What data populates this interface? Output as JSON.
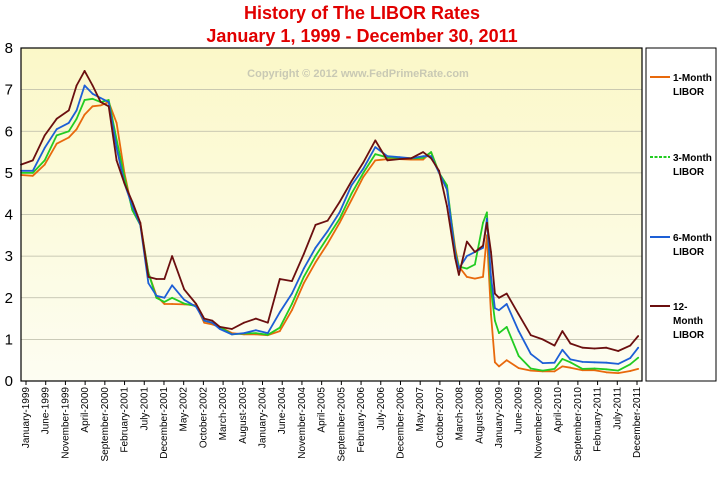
{
  "chart_data": {
    "type": "line",
    "title": "History of The LIBOR Rates",
    "subtitle": "January 1, 1999 - December 30, 2011",
    "watermark": "Copyright © 2012 www.FedPrimeRate.com",
    "xlabel": "",
    "ylabel": "",
    "ylim": [
      0,
      8
    ],
    "yticks": [
      "0",
      "1",
      "2",
      "3",
      "4",
      "5",
      "6",
      "7",
      "8"
    ],
    "xtick_labels": [
      "January-1999",
      "June-1999",
      "November-1999",
      "April-2000",
      "September-2000",
      "February-2001",
      "July-2001",
      "December-2001",
      "May-2002",
      "October-2002",
      "March-2003",
      "August-2003",
      "January-2004",
      "June-2004",
      "November-2004",
      "April-2005",
      "September-2005",
      "February-2006",
      "July-2006",
      "December-2006",
      "May-2007",
      "October-2007",
      "March-2008",
      "August-2008",
      "January-2009",
      "June-2009",
      "November-2009",
      "April-2010",
      "September-2010",
      "February-2011",
      "July-2011",
      "December-2011"
    ],
    "grid": true,
    "legend_position": "right",
    "x": [
      "1999-01",
      "1999-04",
      "1999-07",
      "1999-10",
      "2000-01",
      "2000-03",
      "2000-05",
      "2000-07",
      "2000-09",
      "2000-11",
      "2001-01",
      "2001-03",
      "2001-05",
      "2001-07",
      "2001-09",
      "2001-11",
      "2002-01",
      "2002-03",
      "2002-06",
      "2002-09",
      "2002-11",
      "2003-01",
      "2003-03",
      "2003-06",
      "2003-09",
      "2003-12",
      "2004-03",
      "2004-06",
      "2004-09",
      "2004-12",
      "2005-03",
      "2005-06",
      "2005-09",
      "2005-12",
      "2006-03",
      "2006-06",
      "2006-09",
      "2006-12",
      "2007-03",
      "2007-06",
      "2007-08",
      "2007-10",
      "2007-12",
      "2008-02",
      "2008-03",
      "2008-05",
      "2008-07",
      "2008-09",
      "2008-10",
      "2008-11",
      "2008-12",
      "2009-01",
      "2009-03",
      "2009-06",
      "2009-09",
      "2009-12",
      "2010-03",
      "2010-05",
      "2010-07",
      "2010-10",
      "2011-01",
      "2011-04",
      "2011-07",
      "2011-10",
      "2011-12"
    ],
    "series": [
      {
        "name": "1-Month LIBOR",
        "color": "#e8690c",
        "values": [
          4.95,
          4.93,
          5.2,
          5.7,
          5.85,
          6.05,
          6.4,
          6.6,
          6.62,
          6.7,
          6.2,
          5.0,
          4.1,
          3.8,
          2.6,
          2.05,
          1.85,
          1.85,
          1.84,
          1.82,
          1.4,
          1.36,
          1.3,
          1.15,
          1.12,
          1.12,
          1.1,
          1.2,
          1.7,
          2.35,
          2.85,
          3.3,
          3.8,
          4.35,
          4.9,
          5.3,
          5.33,
          5.33,
          5.32,
          5.32,
          5.5,
          5.0,
          4.6,
          3.2,
          2.75,
          2.5,
          2.46,
          2.5,
          3.5,
          1.6,
          0.45,
          0.35,
          0.5,
          0.31,
          0.25,
          0.23,
          0.23,
          0.35,
          0.32,
          0.26,
          0.26,
          0.21,
          0.19,
          0.24,
          0.29
        ]
      },
      {
        "name": "3-Month LIBOR",
        "color": "#22cc22",
        "values": [
          5.0,
          5.0,
          5.3,
          5.9,
          6.0,
          6.3,
          6.75,
          6.78,
          6.7,
          6.75,
          5.8,
          4.9,
          4.1,
          3.75,
          2.6,
          2.0,
          1.9,
          2.0,
          1.86,
          1.8,
          1.45,
          1.4,
          1.3,
          1.12,
          1.14,
          1.15,
          1.11,
          1.28,
          1.85,
          2.5,
          3.0,
          3.45,
          3.9,
          4.5,
          5.0,
          5.45,
          5.37,
          5.36,
          5.35,
          5.36,
          5.5,
          5.0,
          4.7,
          3.1,
          2.75,
          2.7,
          2.8,
          3.8,
          4.05,
          2.2,
          1.45,
          1.15,
          1.3,
          0.6,
          0.3,
          0.25,
          0.29,
          0.53,
          0.45,
          0.29,
          0.3,
          0.28,
          0.25,
          0.4,
          0.56
        ]
      },
      {
        "name": "6-Month LIBOR",
        "color": "#1d5fd6",
        "values": [
          5.05,
          5.05,
          5.6,
          6.05,
          6.2,
          6.5,
          7.1,
          6.9,
          6.8,
          6.7,
          5.6,
          4.75,
          4.2,
          3.75,
          2.35,
          2.05,
          2.0,
          2.3,
          1.95,
          1.78,
          1.45,
          1.4,
          1.25,
          1.12,
          1.15,
          1.22,
          1.15,
          1.65,
          2.1,
          2.7,
          3.2,
          3.6,
          4.05,
          4.7,
          5.1,
          5.62,
          5.4,
          5.38,
          5.35,
          5.4,
          5.4,
          5.0,
          4.6,
          3.05,
          2.7,
          3.0,
          3.1,
          3.2,
          3.9,
          2.5,
          1.75,
          1.7,
          1.85,
          1.2,
          0.65,
          0.43,
          0.44,
          0.75,
          0.52,
          0.46,
          0.45,
          0.44,
          0.41,
          0.55,
          0.8
        ]
      },
      {
        "name": "12-Month LIBOR",
        "color": "#6b0f0f",
        "values": [
          5.2,
          5.3,
          5.9,
          6.3,
          6.5,
          7.1,
          7.45,
          7.1,
          6.7,
          6.6,
          5.3,
          4.75,
          4.3,
          3.8,
          2.5,
          2.45,
          2.45,
          3.0,
          2.2,
          1.85,
          1.5,
          1.45,
          1.3,
          1.25,
          1.4,
          1.5,
          1.4,
          2.45,
          2.4,
          3.05,
          3.75,
          3.85,
          4.3,
          4.8,
          5.25,
          5.78,
          5.3,
          5.33,
          5.35,
          5.5,
          5.35,
          5.05,
          4.2,
          2.95,
          2.55,
          3.35,
          3.1,
          3.25,
          3.8,
          3.1,
          2.1,
          2.0,
          2.1,
          1.6,
          1.1,
          1.0,
          0.85,
          1.2,
          0.9,
          0.8,
          0.78,
          0.8,
          0.72,
          0.85,
          1.08
        ]
      }
    ]
  }
}
